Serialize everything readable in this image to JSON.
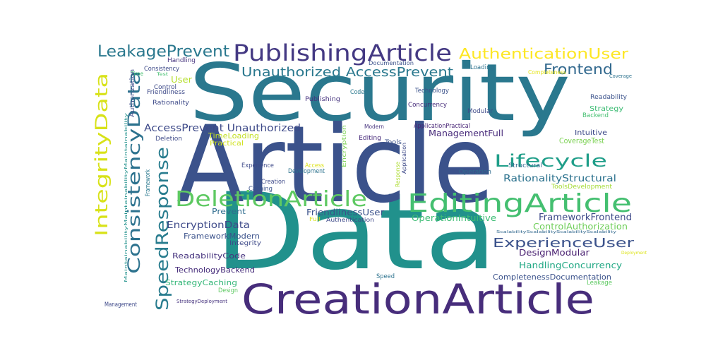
{
  "words": [
    {
      "text": "Security",
      "color": "#2a788e"
    },
    {
      "text": "Data",
      "color": "#21918c"
    },
    {
      "text": "Article",
      "color": "#3b528b"
    },
    {
      "text": "CreationArticle",
      "color": "#472d7b"
    },
    {
      "text": "PublishingArticle",
      "color": "#443983"
    },
    {
      "text": "EditingArticle",
      "color": "#44bf70"
    },
    {
      "text": "DeletionArticle",
      "color": "#5ec962"
    },
    {
      "text": "LeakagePrevent",
      "color": "#2a788e"
    },
    {
      "text": "AuthenticationUser",
      "color": "#fde725"
    },
    {
      "text": "Frontend",
      "color": "#31688e"
    },
    {
      "text": "Unauthorized AccessPrevent",
      "color": "#2a788e"
    },
    {
      "text": "IntegrityData",
      "color": "#d8e219"
    },
    {
      "text": "ConsistencyData",
      "color": "#2c728e"
    },
    {
      "text": "SpeedResponse",
      "color": "#287c8e"
    },
    {
      "text": "Lifecycle",
      "color": "#1f9e89"
    },
    {
      "text": "AccessPrevent Unauthorized",
      "color": "#3e4a89"
    },
    {
      "text": "ManagementFull",
      "color": "#472a7a"
    },
    {
      "text": "RationalityStructural",
      "color": "#2c728e"
    },
    {
      "text": "ExperienceUser",
      "color": "#3b528b"
    },
    {
      "text": "FrameworkFrontend",
      "color": "#3e4a89"
    },
    {
      "text": "ControlAuthorization",
      "color": "#6ece58"
    },
    {
      "text": "OperationIntuitive",
      "color": "#3dbc74"
    },
    {
      "text": "FriendlinessUser",
      "color": "#3b528b"
    },
    {
      "text": "EncryptionData",
      "color": "#3e4a89"
    },
    {
      "text": "FrameworkModern",
      "color": "#3b528b"
    },
    {
      "text": "ReadabilityCode",
      "color": "#46337e"
    },
    {
      "text": "TechnologyBackend",
      "color": "#472d7b"
    },
    {
      "text": "StrategyCaching",
      "color": "#35b779"
    },
    {
      "text": "DesignModular",
      "color": "#481f70"
    },
    {
      "text": "HandlingConcurrency",
      "color": "#22a884"
    },
    {
      "text": "CompletenessDocumentation",
      "color": "#3b528b"
    },
    {
      "text": "User",
      "color": "#b5de2b"
    },
    {
      "text": "TimeLoading",
      "color": "#c2df23"
    },
    {
      "text": "Practical",
      "color": "#d0e11c"
    },
    {
      "text": "Prevent",
      "color": "#2f6c8e"
    },
    {
      "text": "Integrity",
      "color": "#3e4a89"
    },
    {
      "text": "Design",
      "color": "#5ec962"
    },
    {
      "text": "Management",
      "color": "#3e4989"
    },
    {
      "text": "StrategyDeployment",
      "color": "#46337e"
    },
    {
      "text": "MaintainabilityMaintainabilityMaintainability",
      "color": "#21918c"
    },
    {
      "text": "ScalabilityScalabilityScalabilityScalability",
      "color": "#31688e"
    },
    {
      "text": "Speed",
      "color": "#2c728e"
    },
    {
      "text": "Leakage",
      "color": "#5ec962"
    },
    {
      "text": "Deployment",
      "color": "#dde318"
    },
    {
      "text": "Loading",
      "color": "#2c728e"
    },
    {
      "text": "Completeness",
      "color": "#e5e419"
    },
    {
      "text": "Coverage",
      "color": "#2c728e"
    },
    {
      "text": "Readability",
      "color": "#3b528b"
    },
    {
      "text": "Strategy",
      "color": "#3dbc74"
    },
    {
      "text": "Backend",
      "color": "#44bf70"
    },
    {
      "text": "Intuitive",
      "color": "#3e4a89"
    },
    {
      "text": "CoverageTest",
      "color": "#7ad151"
    },
    {
      "text": "Structural",
      "color": "#31688e"
    },
    {
      "text": "ToolsDevelopment",
      "color": "#a5db36"
    },
    {
      "text": "Operation",
      "color": "#2f6c8e"
    },
    {
      "text": "Modular",
      "color": "#3e4a89"
    },
    {
      "text": "Technology",
      "color": "#3b528b"
    },
    {
      "text": "Concurrency",
      "color": "#472d7b"
    },
    {
      "text": "ApplicationPractical",
      "color": "#482576"
    },
    {
      "text": "Publishing",
      "color": "#46337e"
    },
    {
      "text": "Code",
      "color": "#2a788e"
    },
    {
      "text": "Documentation",
      "color": "#3b528b"
    },
    {
      "text": "Modern",
      "color": "#46337e"
    },
    {
      "text": "Editing",
      "color": "#472a7a"
    },
    {
      "text": "Tools",
      "color": "#3b528b"
    },
    {
      "text": "Encryption",
      "color": "#7ad151"
    },
    {
      "text": "Application",
      "color": "#3e4a89"
    },
    {
      "text": "Response",
      "color": "#addc30"
    },
    {
      "text": "Access",
      "color": "#dde318"
    },
    {
      "text": "Development",
      "color": "#2c728e"
    },
    {
      "text": "Full",
      "color": "#d8e219"
    },
    {
      "text": "Authentication",
      "color": "#3e4a89"
    },
    {
      "text": "Experience",
      "color": "#3e4a89"
    },
    {
      "text": "Creation",
      "color": "#3e4a89"
    },
    {
      "text": "Caching",
      "color": "#3b528b"
    },
    {
      "text": "Deletion",
      "color": "#3e4a89"
    },
    {
      "text": "Framework",
      "color": "#2a788e"
    },
    {
      "text": "Handling",
      "color": "#46337e"
    },
    {
      "text": "Consistency",
      "color": "#3e4a89"
    },
    {
      "text": "Time",
      "color": "#44bf70"
    },
    {
      "text": "Test",
      "color": "#44bf70"
    },
    {
      "text": "Control",
      "color": "#3e4a89"
    },
    {
      "text": "Friendliness",
      "color": "#3e4a89"
    },
    {
      "text": "Rationality",
      "color": "#3e4a89"
    },
    {
      "text": "Authorization",
      "color": "#3e4a89"
    }
  ]
}
